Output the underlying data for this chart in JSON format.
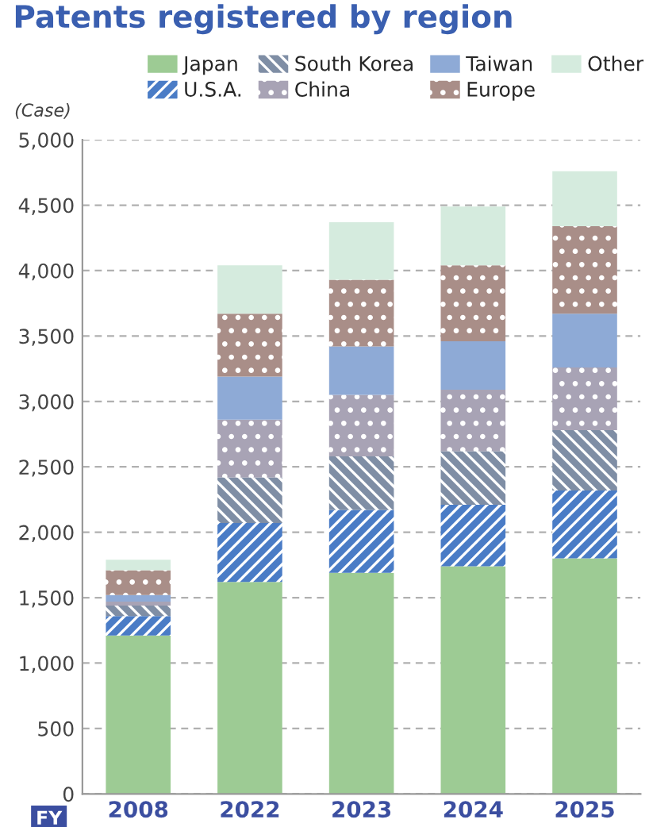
{
  "chart_data": {
    "type": "bar",
    "stacked": true,
    "title": "Patents registered by region",
    "ylabel": "(Case)",
    "xlabel": "FY",
    "categories": [
      "2008",
      "2022",
      "2023",
      "2024",
      "2025"
    ],
    "series": [
      {
        "name": "Japan",
        "color": "#9dcb94",
        "values": [
          1210,
          1620,
          1690,
          1740,
          1800
        ]
      },
      {
        "name": "U.S.A.",
        "color": "#4a7cc6",
        "values": [
          150,
          450,
          480,
          470,
          520
        ]
      },
      {
        "name": "South Korea",
        "color": "#7f8ea5",
        "values": [
          80,
          350,
          410,
          410,
          460
        ]
      },
      {
        "name": "China",
        "color": "#a8a3b5",
        "values": [
          30,
          440,
          470,
          470,
          480
        ]
      },
      {
        "name": "Taiwan",
        "color": "#8eaad6",
        "values": [
          50,
          330,
          370,
          370,
          410
        ]
      },
      {
        "name": "Europe",
        "color": "#a98e88",
        "values": [
          190,
          480,
          510,
          580,
          670
        ]
      },
      {
        "name": "Other",
        "color": "#d5ebde",
        "values": [
          80,
          370,
          440,
          450,
          420
        ]
      }
    ],
    "ylim": [
      0,
      5000
    ],
    "yticks": [
      0,
      500,
      {
        "value": 1000,
        "label": "1,000"
      },
      {
        "value": 1500,
        "label": "1,500"
      },
      {
        "value": 2000,
        "label": "2,000"
      },
      {
        "value": 2500,
        "label": "2,500"
      },
      {
        "value": 3000,
        "label": "3,000"
      },
      {
        "value": 3500,
        "label": "3,500"
      },
      {
        "value": 4000,
        "label": "4,000"
      },
      {
        "value": 4500,
        "label": "4,500"
      },
      {
        "value": 5000,
        "label": "5,000"
      }
    ],
    "grid": "y",
    "legend": "top"
  }
}
